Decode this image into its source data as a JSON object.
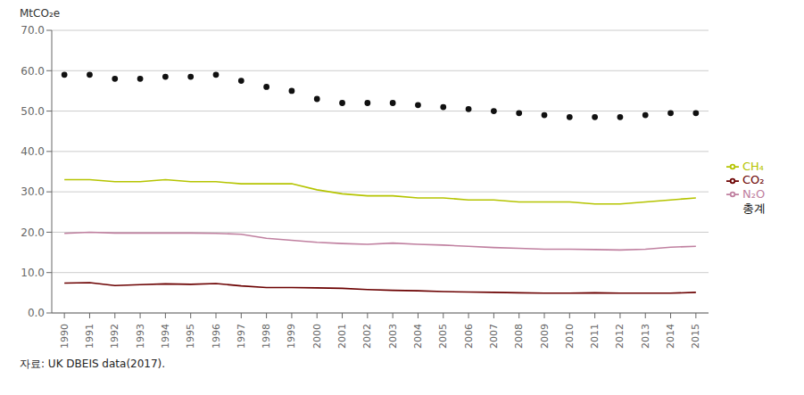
{
  "chart_data": {
    "type": "line",
    "ylabel": "MtCO₂e",
    "annotations": [
      "자료: UK DBEIS data(2017)."
    ],
    "x": [
      1990,
      1991,
      1992,
      1993,
      1994,
      1995,
      1996,
      1997,
      1998,
      1999,
      2000,
      2001,
      2002,
      2003,
      2004,
      2005,
      2006,
      2007,
      2008,
      2009,
      2010,
      2011,
      2012,
      2013,
      2014,
      2015
    ],
    "xlim": [
      1989.5,
      2015.5
    ],
    "xticks": [
      1990,
      1991,
      1992,
      1993,
      1994,
      1995,
      1996,
      1997,
      1998,
      1999,
      2000,
      2001,
      2002,
      2003,
      2004,
      2005,
      2006,
      2007,
      2008,
      2009,
      2010,
      2011,
      2012,
      2013,
      2014,
      2015
    ],
    "ylim": [
      0,
      70
    ],
    "yticks": [
      {
        "value": 0,
        "label": "0.0"
      },
      {
        "value": 10,
        "label": "10.0"
      },
      {
        "value": 20,
        "label": "20.0"
      },
      {
        "value": 30,
        "label": "30.0"
      },
      {
        "value": 40,
        "label": "40.0"
      },
      {
        "value": 50,
        "label": "50.0"
      },
      {
        "value": 60,
        "label": "60.0"
      },
      {
        "value": 70,
        "label": "70.0"
      }
    ],
    "grid": "y",
    "legend": "right",
    "series": [
      {
        "name": "CO₂",
        "color": "#6b0000",
        "type": "line",
        "values": [
          7.4,
          7.5,
          6.8,
          7.0,
          7.2,
          7.1,
          7.3,
          6.7,
          6.3,
          6.3,
          6.2,
          6.1,
          5.8,
          5.6,
          5.5,
          5.3,
          5.2,
          5.1,
          5.0,
          4.9,
          4.9,
          5.0,
          4.9,
          4.9,
          4.9,
          5.1
        ]
      },
      {
        "name": "CH₄",
        "color": "#b5c400",
        "type": "line",
        "values": [
          33.0,
          33.0,
          32.5,
          32.5,
          33.0,
          32.5,
          32.5,
          32.0,
          32.0,
          32.0,
          30.5,
          29.5,
          29.0,
          29.0,
          28.5,
          28.5,
          28.0,
          28.0,
          27.5,
          27.5,
          27.5,
          27.0,
          27.0,
          27.5,
          28.0,
          28.5
        ]
      },
      {
        "name": "N₂O",
        "color": "#c080a0",
        "type": "line",
        "values": [
          19.7,
          20.0,
          19.8,
          19.8,
          19.8,
          19.8,
          19.7,
          19.5,
          18.5,
          18.0,
          17.5,
          17.2,
          17.0,
          17.3,
          17.0,
          16.8,
          16.5,
          16.2,
          16.0,
          15.8,
          15.8,
          15.7,
          15.6,
          15.8,
          16.3,
          16.5
        ]
      },
      {
        "name": "총계",
        "color": "#111111",
        "type": "scatter",
        "marker": "circle",
        "line_style": "none",
        "values": [
          59.0,
          59.0,
          58.0,
          58.0,
          58.5,
          58.5,
          59.0,
          57.5,
          56.0,
          55.0,
          53.0,
          52.0,
          52.0,
          52.0,
          51.5,
          51.0,
          50.5,
          50.0,
          49.5,
          49.0,
          48.5,
          48.5,
          48.5,
          49.0,
          49.5,
          49.5
        ]
      }
    ]
  }
}
